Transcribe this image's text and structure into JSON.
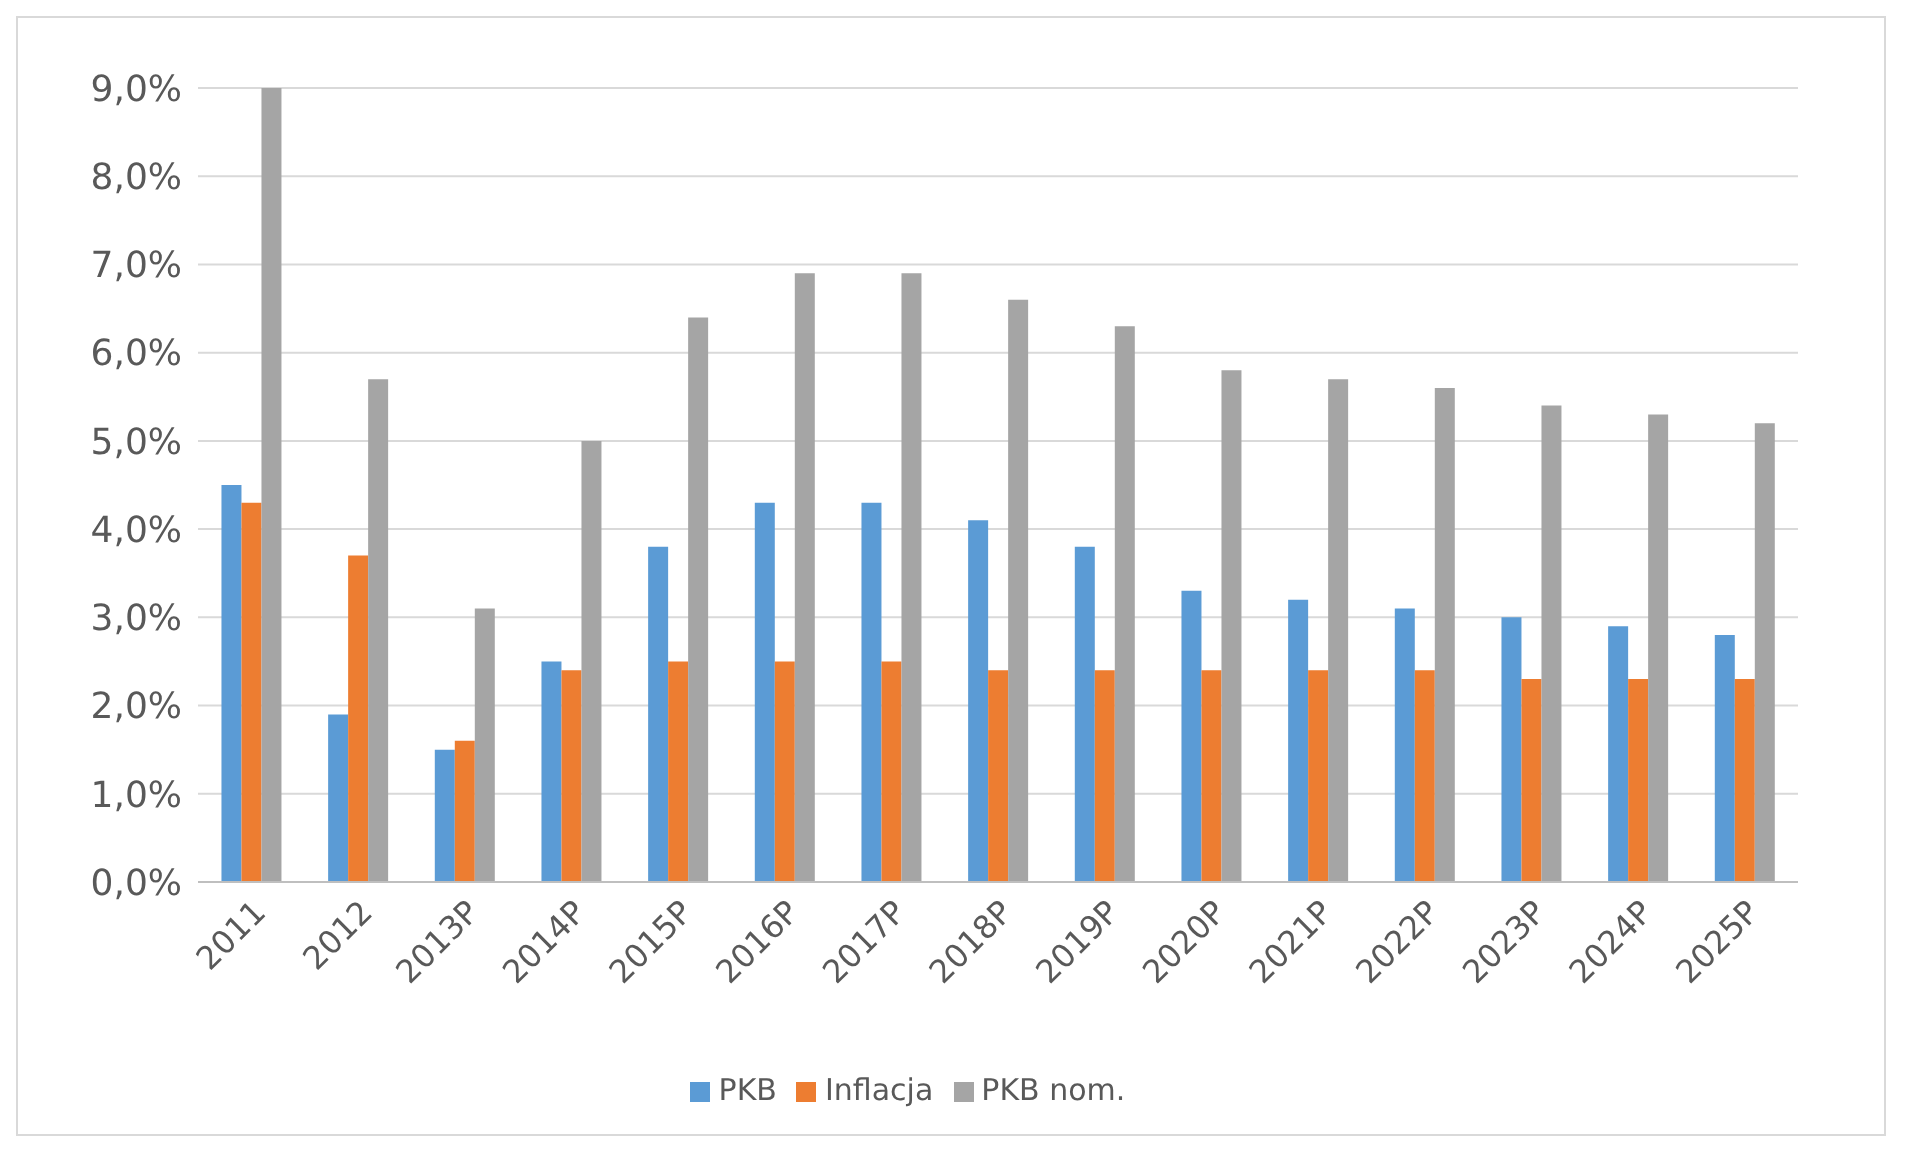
{
  "chart_data": {
    "type": "bar",
    "categories": [
      "2011",
      "2012",
      "2013P",
      "2014P",
      "2015P",
      "2016P",
      "2017P",
      "2018P",
      "2019P",
      "2020P",
      "2021P",
      "2022P",
      "2023P",
      "2024P",
      "2025P"
    ],
    "series": [
      {
        "name": "PKB",
        "color": "#5b9bd5",
        "values": [
          4.5,
          1.9,
          1.5,
          2.5,
          3.8,
          4.3,
          4.3,
          4.1,
          3.8,
          3.3,
          3.2,
          3.1,
          3.0,
          2.9,
          2.8
        ]
      },
      {
        "name": "Inflacja",
        "color": "#ed7d31",
        "values": [
          4.3,
          3.7,
          1.6,
          2.4,
          2.5,
          2.5,
          2.5,
          2.4,
          2.4,
          2.4,
          2.4,
          2.4,
          2.3,
          2.3,
          2.3
        ]
      },
      {
        "name": "PKB nom.",
        "color": "#a5a5a5",
        "values": [
          9.0,
          5.7,
          3.1,
          5.0,
          6.4,
          6.9,
          6.9,
          6.6,
          6.3,
          5.8,
          5.7,
          5.6,
          5.4,
          5.3,
          5.2
        ]
      }
    ],
    "ylim": [
      0,
      9
    ],
    "yticks": [
      {
        "value": 0,
        "label": "0,0%"
      },
      {
        "value": 1,
        "label": "1,0%"
      },
      {
        "value": 2,
        "label": "2,0%"
      },
      {
        "value": 3,
        "label": "3,0%"
      },
      {
        "value": 4,
        "label": "4,0%"
      },
      {
        "value": 5,
        "label": "5,0%"
      },
      {
        "value": 6,
        "label": "6,0%"
      },
      {
        "value": 7,
        "label": "7,0%"
      },
      {
        "value": 8,
        "label": "8,0%"
      },
      {
        "value": 9,
        "label": "9,0%"
      }
    ],
    "grid": "y",
    "legend": "bottom"
  }
}
